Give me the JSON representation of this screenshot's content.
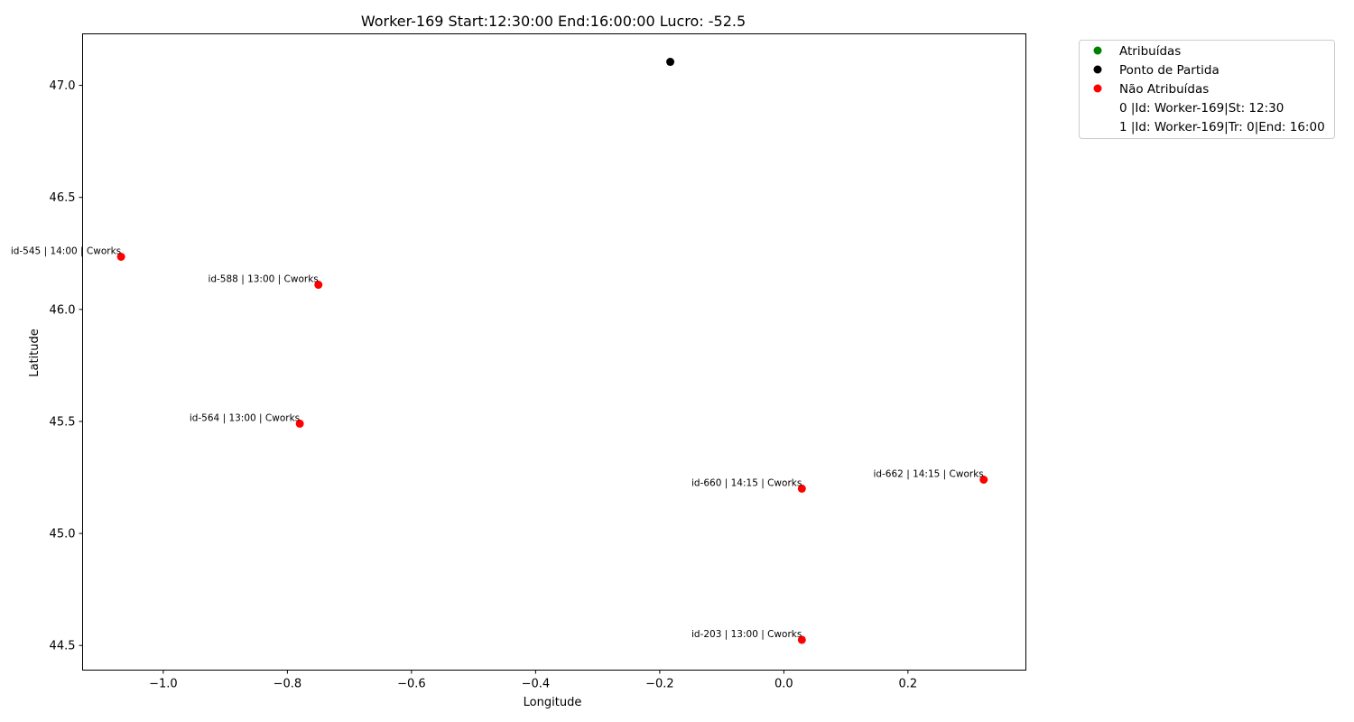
{
  "chart_data": {
    "type": "scatter",
    "title": "Worker-169 Start:12:30:00 End:16:00:00 Lucro: -52.5",
    "xlabel": "Longitude",
    "ylabel": "Latitude",
    "xlim": [
      -1.13,
      0.39
    ],
    "ylim": [
      44.39,
      47.23
    ],
    "xticks": [
      -1.0,
      -0.8,
      -0.6,
      -0.4,
      -0.2,
      0.0,
      0.2
    ],
    "xtick_labels": [
      "−1.0",
      "−0.8",
      "−0.6",
      "−0.4",
      "−0.2",
      "0.0",
      "0.2"
    ],
    "yticks": [
      44.5,
      45.0,
      45.5,
      46.0,
      46.5,
      47.0
    ],
    "ytick_labels": [
      "44.5",
      "45.0",
      "45.5",
      "46.0",
      "46.5",
      "47.0"
    ],
    "grid": false,
    "legend_position": "outside-top-right",
    "series": [
      {
        "name": "Atribuídas",
        "color": "#008000",
        "points": []
      },
      {
        "name": "Ponto de Partida",
        "color": "#000000",
        "points": [
          {
            "x": -0.183,
            "y": 47.105,
            "label": ""
          }
        ]
      },
      {
        "name": "Não Atribuídas",
        "color": "#ff0000",
        "points": [
          {
            "x": -1.068,
            "y": 46.235,
            "label": "id-545 | 14:00 | Cworks"
          },
          {
            "x": -0.75,
            "y": 46.11,
            "label": "id-588 | 13:00 | Cworks"
          },
          {
            "x": -0.78,
            "y": 45.49,
            "label": "id-564 | 13:00 | Cworks"
          },
          {
            "x": 0.029,
            "y": 45.2,
            "label": "id-660 | 14:15 | Cworks"
          },
          {
            "x": 0.322,
            "y": 45.24,
            "label": "id-662 | 14:15 | Cworks"
          },
          {
            "x": 0.029,
            "y": 44.525,
            "label": "id-203 | 13:00 | Cworks"
          }
        ]
      }
    ],
    "legend_extra": [
      "0 |Id: Worker-169|St: 12:30",
      "1 |Id: Worker-169|Tr: 0|End: 16:00"
    ]
  }
}
